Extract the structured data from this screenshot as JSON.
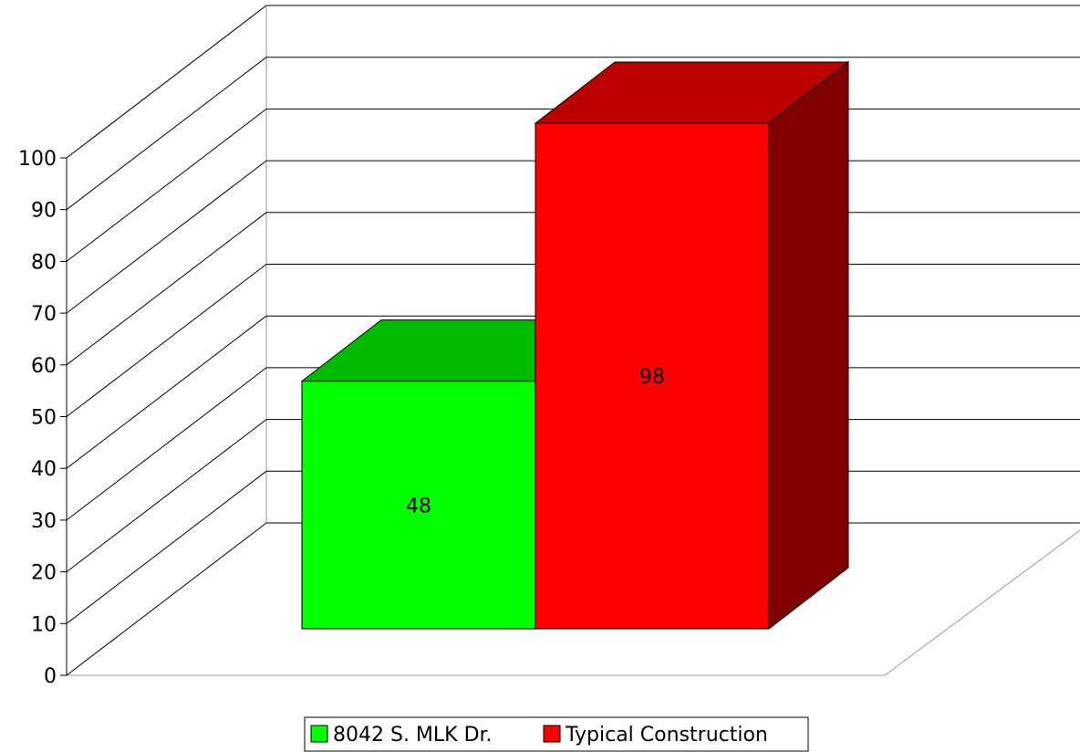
{
  "chart_data": {
    "type": "bar",
    "categories": [
      "8042 S. MLK Dr.",
      "Typical Construction"
    ],
    "values": [
      48,
      98
    ],
    "ylim": [
      0,
      100
    ],
    "yticks": [
      0,
      10,
      20,
      30,
      40,
      50,
      60,
      70,
      80,
      90,
      100
    ],
    "grid": true,
    "three_d": true,
    "legend_position": "bottom",
    "series": [
      {
        "name": "8042 S. MLK Dr.",
        "value": 48,
        "color": "#00ff00",
        "top_color": "#00bb00",
        "side_color": "#008800"
      },
      {
        "name": "Typical Construction",
        "value": 98,
        "color": "#ff0000",
        "top_color": "#bb0000",
        "side_color": "#800000"
      }
    ]
  }
}
